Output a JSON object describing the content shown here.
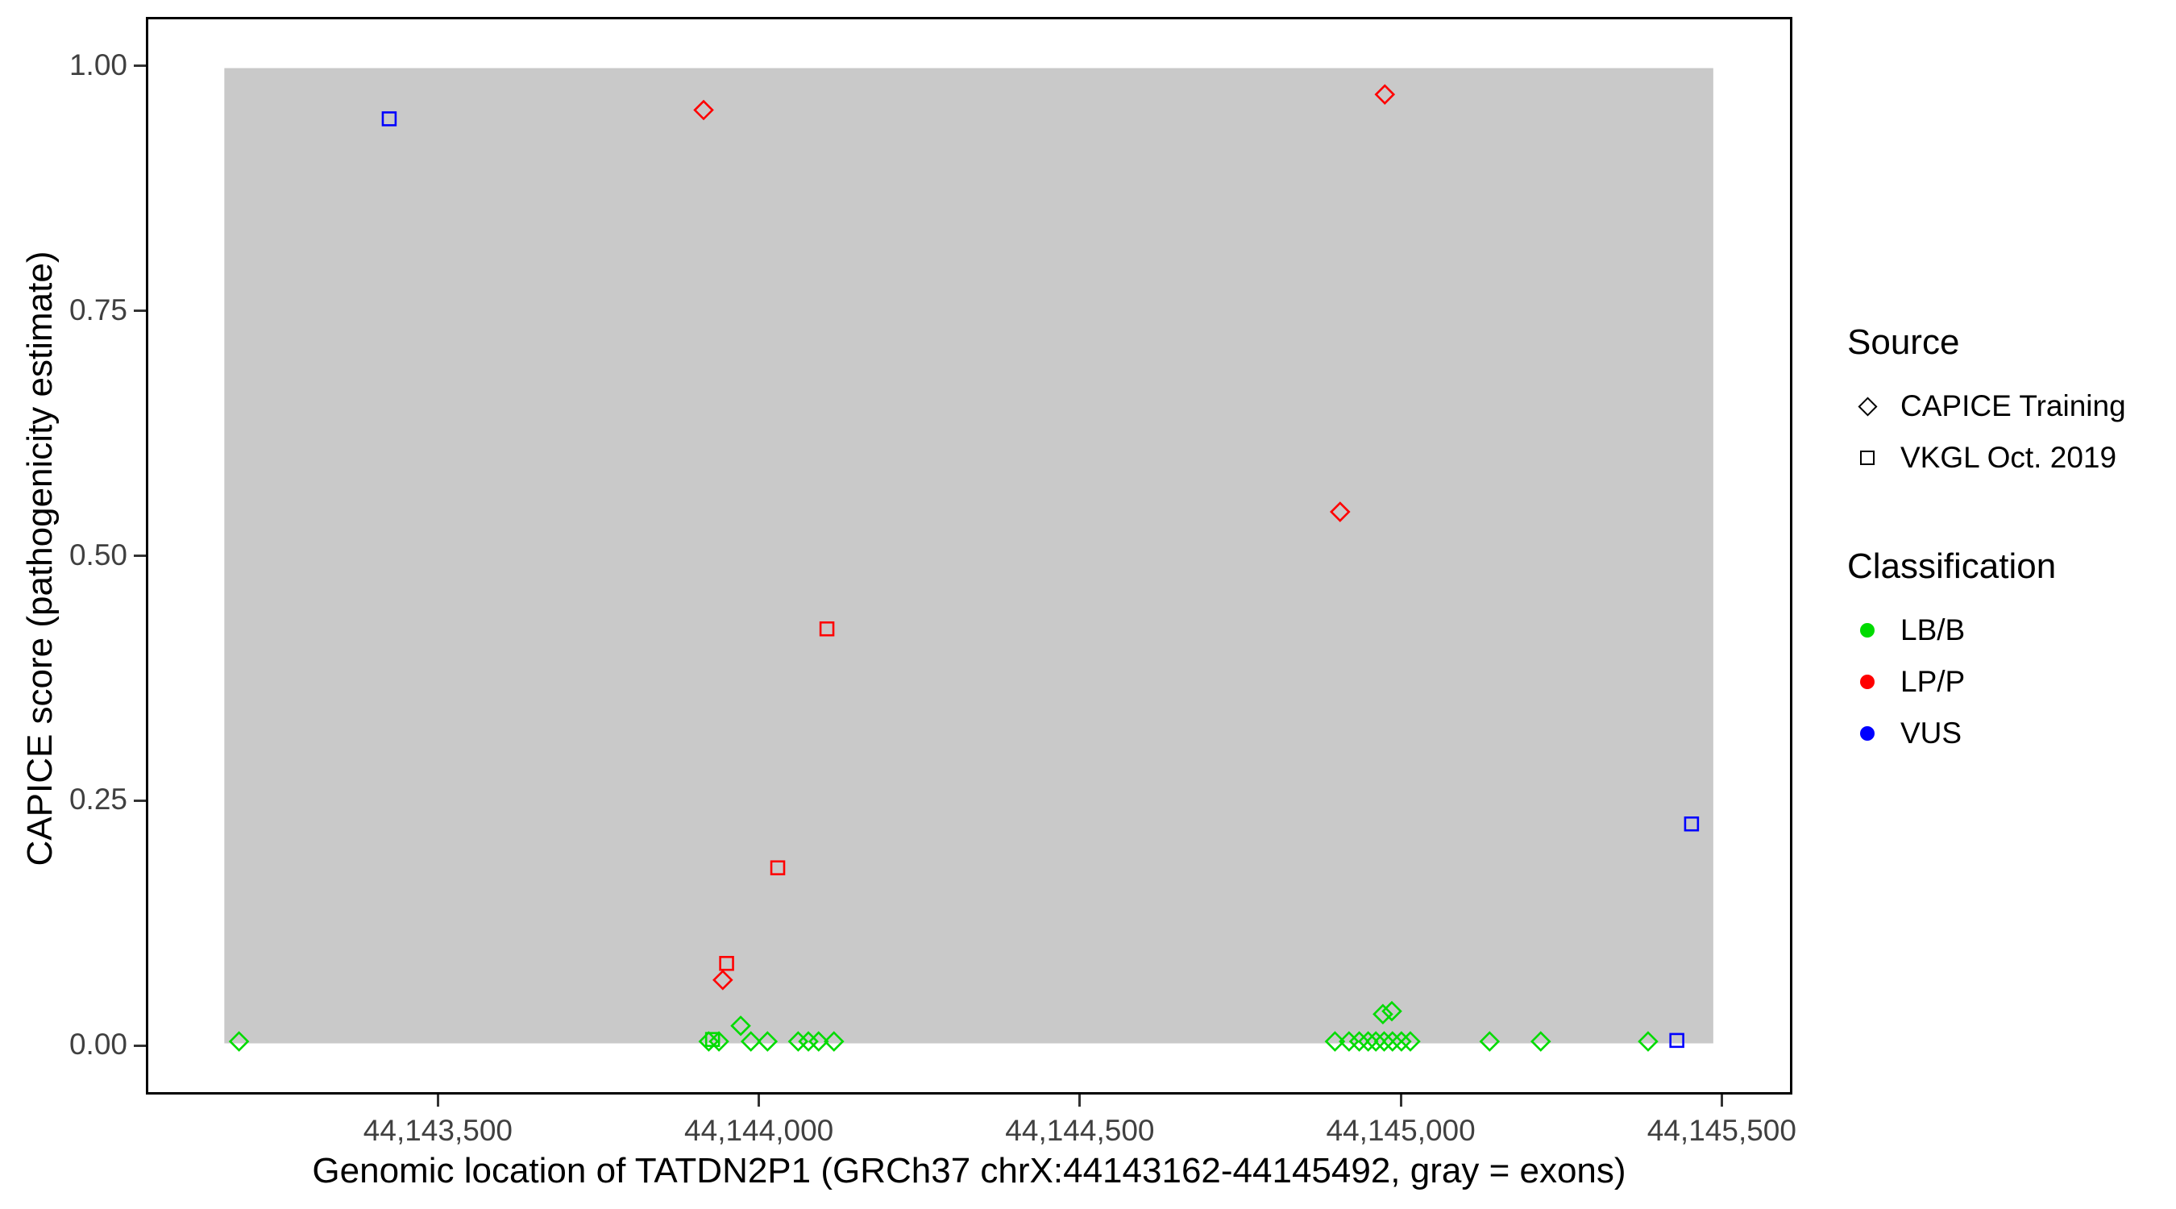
{
  "chart_data": {
    "type": "scatter",
    "title": "",
    "xlabel": "Genomic location of TATDN2P1 (GRCh37 chrX:44143162-44145492, gray = exons)",
    "ylabel": "CAPICE score (pathogenicity estimate)",
    "xlim": [
      44143045,
      44145610
    ],
    "ylim": [
      -0.05,
      1.05
    ],
    "grid": false,
    "legend_position": "right",
    "x_ticks": [
      {
        "value": 44143500,
        "label": "44,143,500"
      },
      {
        "value": 44144000,
        "label": "44,144,000"
      },
      {
        "value": 44144500,
        "label": "44,144,500"
      },
      {
        "value": 44145000,
        "label": "44,145,000"
      },
      {
        "value": 44145500,
        "label": "44,145,500"
      }
    ],
    "y_ticks": [
      {
        "value": 0.0,
        "label": "0.00"
      },
      {
        "value": 0.25,
        "label": "0.25"
      },
      {
        "value": 0.5,
        "label": "0.50"
      },
      {
        "value": 0.75,
        "label": "0.75"
      },
      {
        "value": 1.0,
        "label": "1.00"
      }
    ],
    "exon_region": {
      "start": 44143162,
      "end": 44145492,
      "ymin": 0.0,
      "ymax": 1.0,
      "color": "#C9C9C9"
    },
    "series": [
      {
        "name": "CAPICE Training / LB/B",
        "source": "CAPICE Training",
        "classification": "LB/B",
        "shape": "diamond",
        "color": "#00DB00",
        "points": [
          [
            44143185,
            0.002
          ],
          [
            44143920,
            0.002
          ],
          [
            44143936,
            0.002
          ],
          [
            44143970,
            0.018
          ],
          [
            44143986,
            0.002
          ],
          [
            44144012,
            0.002
          ],
          [
            44144060,
            0.002
          ],
          [
            44144076,
            0.002
          ],
          [
            44144092,
            0.002
          ],
          [
            44144116,
            0.002
          ],
          [
            44144900,
            0.002
          ],
          [
            44144922,
            0.002
          ],
          [
            44144938,
            0.002
          ],
          [
            44144952,
            0.002
          ],
          [
            44144964,
            0.002
          ],
          [
            44144977,
            0.002
          ],
          [
            44144990,
            0.002
          ],
          [
            44145004,
            0.002
          ],
          [
            44145018,
            0.002
          ],
          [
            44144975,
            0.03
          ],
          [
            44144989,
            0.033
          ],
          [
            44145142,
            0.002
          ],
          [
            44145222,
            0.002
          ],
          [
            44145390,
            0.002
          ]
        ]
      },
      {
        "name": "VKGL Oct. 2019 / LB/B",
        "source": "VKGL Oct. 2019",
        "classification": "LB/B",
        "shape": "square",
        "color": "#00DB00",
        "points": [
          [
            44143926,
            0.004
          ]
        ]
      },
      {
        "name": "CAPICE Training / LP/P",
        "source": "CAPICE Training",
        "classification": "LP/P",
        "shape": "diamond",
        "color": "#FF0000",
        "points": [
          [
            44143912,
            0.957
          ],
          [
            44144978,
            0.973
          ],
          [
            44144908,
            0.545
          ],
          [
            44143942,
            0.065
          ]
        ]
      },
      {
        "name": "VKGL Oct. 2019 / LP/P",
        "source": "VKGL Oct. 2019",
        "classification": "LP/P",
        "shape": "square",
        "color": "#FF0000",
        "points": [
          [
            44144105,
            0.425
          ],
          [
            44144028,
            0.18
          ],
          [
            44143948,
            0.082
          ]
        ]
      },
      {
        "name": "VKGL Oct. 2019 / VUS",
        "source": "VKGL Oct. 2019",
        "classification": "VUS",
        "shape": "square",
        "color": "#0000FF",
        "points": [
          [
            44143420,
            0.948
          ],
          [
            44145458,
            0.225
          ],
          [
            44145435,
            0.003
          ]
        ]
      }
    ],
    "legend": {
      "source": {
        "title": "Source",
        "items": [
          {
            "label": "CAPICE Training",
            "shape": "diamond"
          },
          {
            "label": "VKGL Oct. 2019",
            "shape": "square"
          }
        ]
      },
      "classification": {
        "title": "Classification",
        "items": [
          {
            "label": "LB/B",
            "color": "#00DB00"
          },
          {
            "label": "LP/P",
            "color": "#FF0000"
          },
          {
            "label": "VUS",
            "color": "#0000FF"
          }
        ]
      }
    }
  }
}
